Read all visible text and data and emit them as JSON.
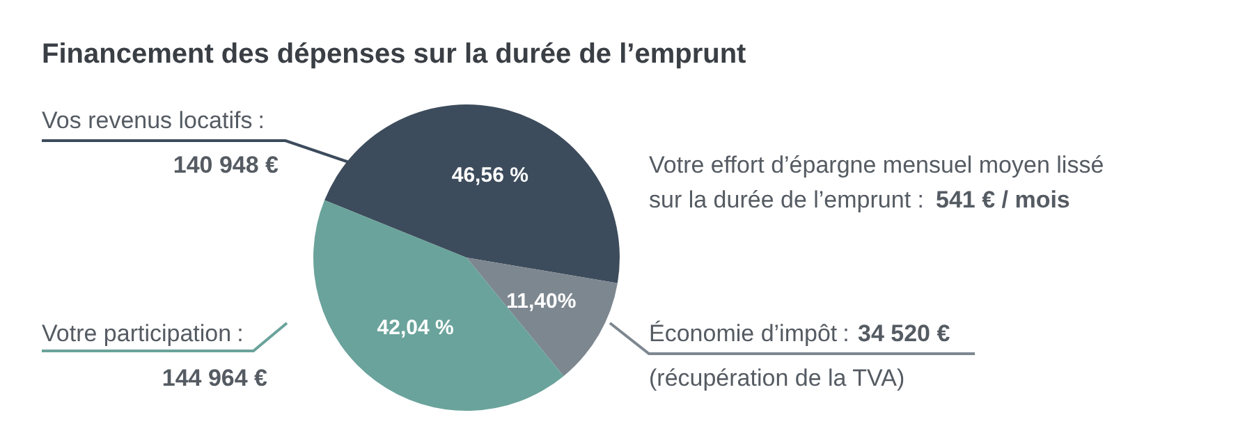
{
  "chart_data": {
    "type": "pie",
    "title": "Financement des dépenses sur la durée de l’emprunt",
    "categories": [
      "Vos revenus locatifs",
      "Économie d’impôt",
      "Votre participation"
    ],
    "values": [
      46.56,
      11.4,
      42.04
    ],
    "colors": [
      "#3d4c5c",
      "#7d8790",
      "#6aa39b"
    ],
    "value_labels": [
      "46,56 %",
      "11,40%",
      "42,04 %"
    ],
    "annotations": [
      "140 948 €",
      "34 520 €",
      "144 964 €",
      "Votre effort d’épargne mensuel moyen lissé",
      "sur la durée de l’emprunt :",
      "541 € / mois",
      "(récupération de la TVA)",
      ":",
      ":",
      ":"
    ]
  }
}
